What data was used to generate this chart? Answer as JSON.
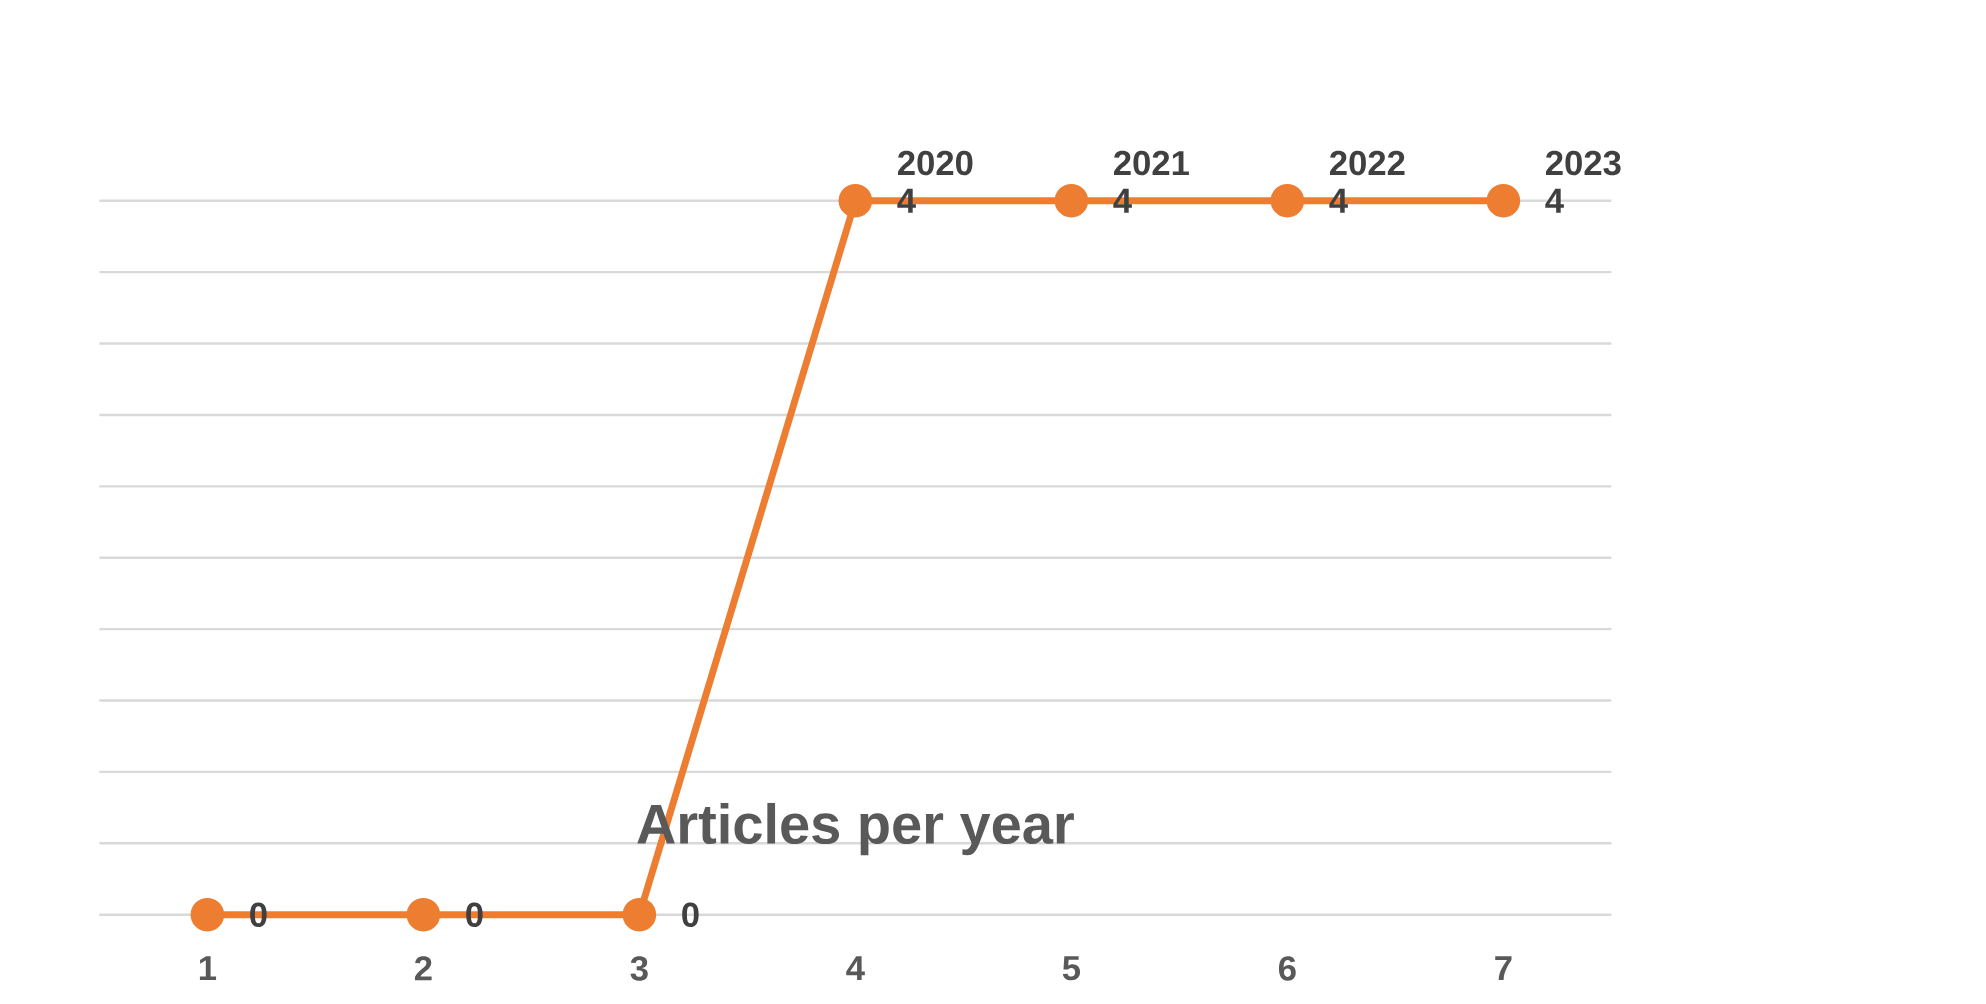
{
  "chart_data": {
    "type": "line",
    "title": "Articles per year",
    "categories": [
      "1",
      "2",
      "3",
      "4",
      "5",
      "6",
      "7"
    ],
    "series": [
      {
        "color": "#ed7d31",
        "values": [
          0,
          0,
          0,
          4,
          4,
          4,
          4
        ]
      }
    ],
    "tick_labels": "x",
    "grid": "y",
    "marker": "circle",
    "line_style": "solid",
    "data_labels": true,
    "annotations": [
      {
        "text": "2020",
        "x": "4",
        "y": 4
      },
      {
        "text": "2021",
        "x": "5",
        "y": 4
      },
      {
        "text": "2022",
        "x": "6",
        "y": 4
      },
      {
        "text": "2023",
        "x": "7",
        "y": 4
      }
    ]
  }
}
